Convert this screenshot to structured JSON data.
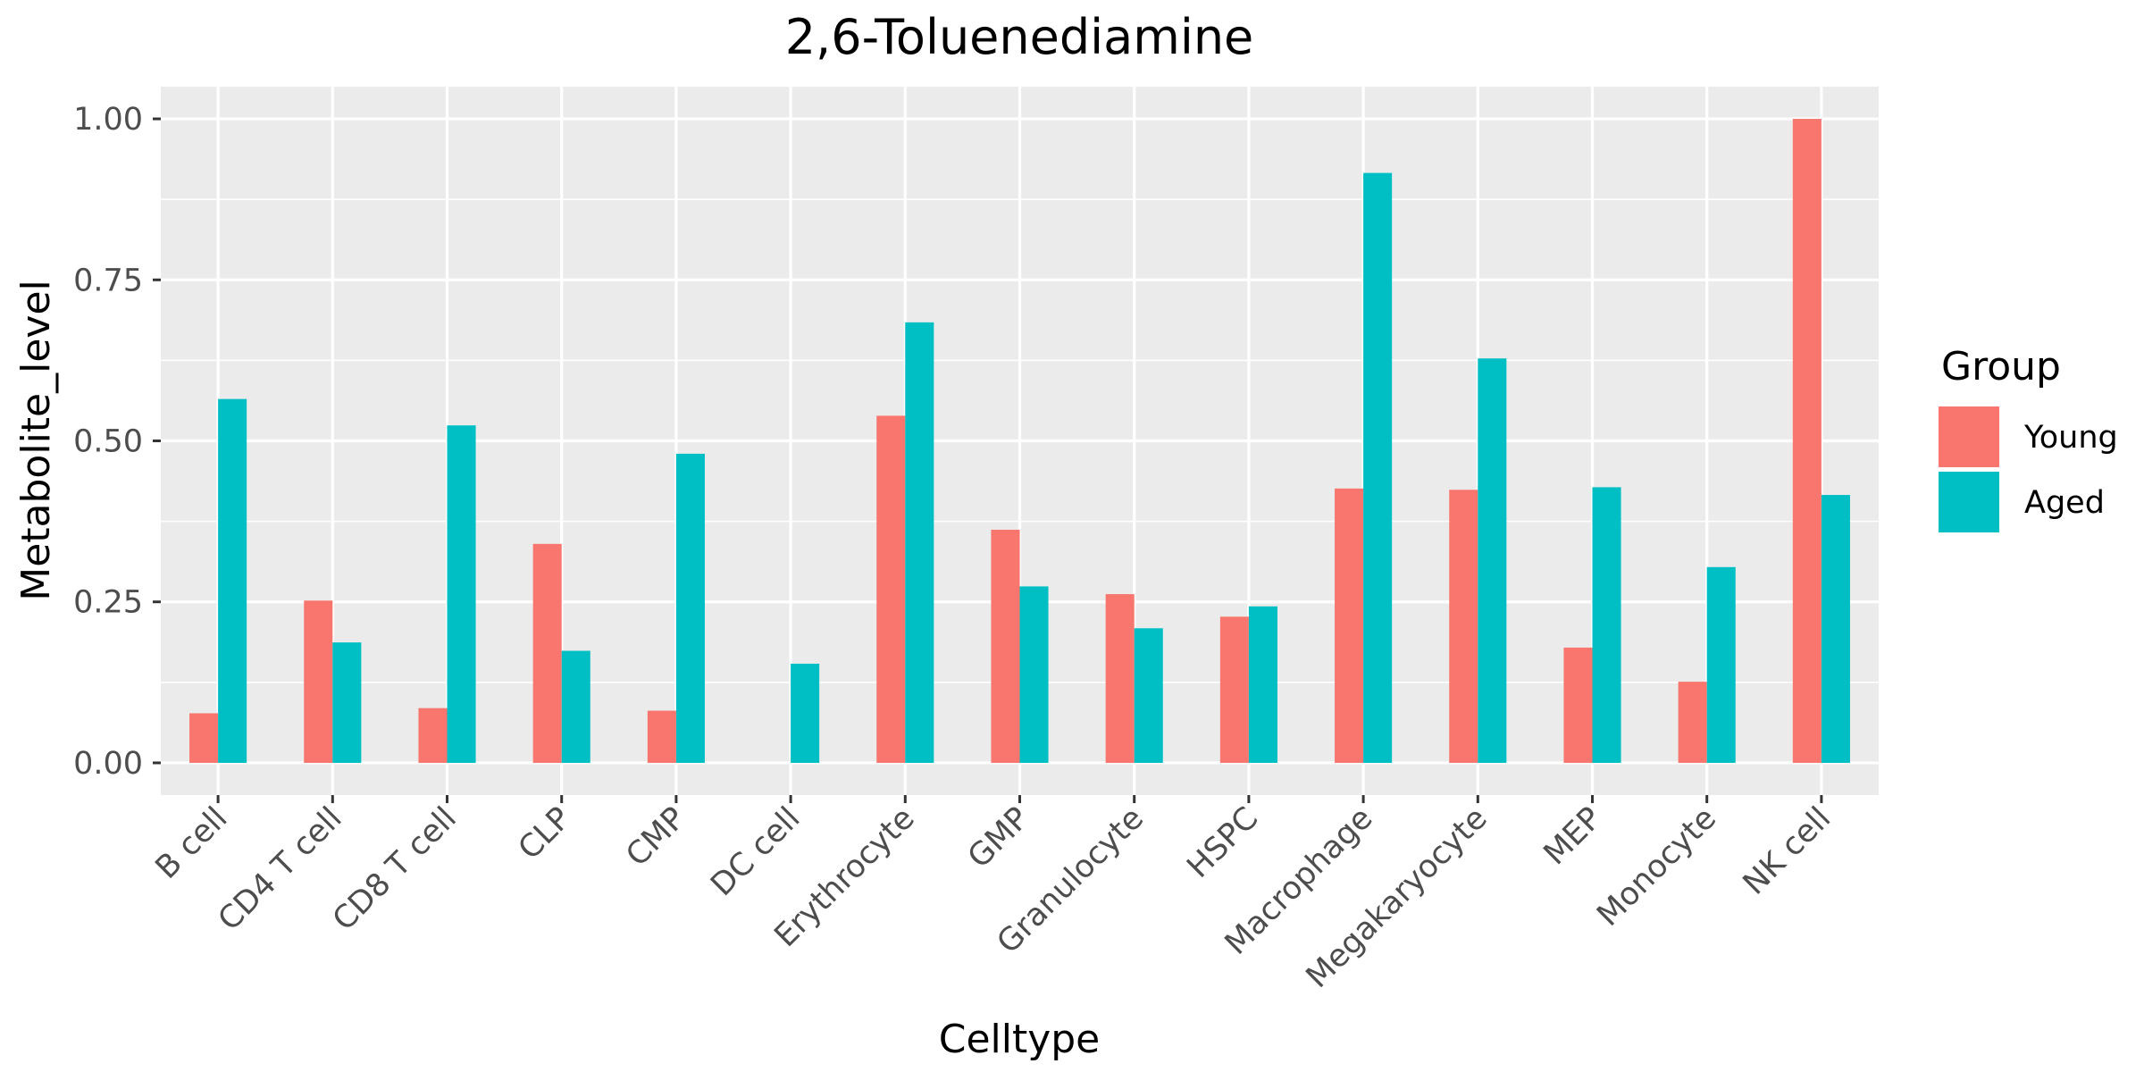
{
  "chart_data": {
    "type": "bar",
    "title": "2,6-Toluenediamine",
    "xlabel": "Celltype",
    "ylabel": "Metabolite_level",
    "ylim": [
      -0.05,
      1.05
    ],
    "yticks": [
      0.0,
      0.25,
      0.5,
      0.75,
      1.0
    ],
    "ytick_labels": [
      "0.00",
      "0.25",
      "0.50",
      "0.75",
      "1.00"
    ],
    "grid": true,
    "legend": {
      "title": "Group",
      "position": "right"
    },
    "categories": [
      "B cell",
      "CD4 T cell",
      "CD8 T cell",
      "CLP",
      "CMP",
      "DC cell",
      "Erythrocyte",
      "GMP",
      "Granulocyte",
      "HSPC",
      "Macrophage",
      "Megakaryocyte",
      "MEP",
      "Monocyte",
      "NK cell"
    ],
    "series": [
      {
        "name": "Young",
        "color": "#F8766D",
        "values": [
          0.077,
          0.252,
          0.085,
          0.34,
          0.081,
          0.0,
          0.539,
          0.362,
          0.262,
          0.227,
          0.426,
          0.424,
          0.179,
          0.126,
          1.0
        ]
      },
      {
        "name": "Aged",
        "color": "#00BFC4",
        "values": [
          0.565,
          0.187,
          0.524,
          0.174,
          0.48,
          0.154,
          0.684,
          0.274,
          0.209,
          0.243,
          0.916,
          0.628,
          0.428,
          0.304,
          0.416
        ]
      }
    ]
  }
}
